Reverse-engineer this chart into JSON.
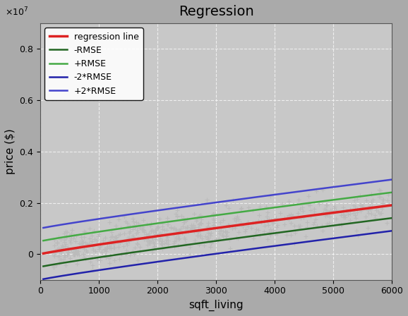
{
  "title": "Regression",
  "xlabel": "sqft_living",
  "ylabel": "price ($)",
  "xlim": [
    0,
    6000
  ],
  "ylim": [
    -1000000.0,
    9000000.0
  ],
  "yticks": [
    0,
    2000000.0,
    4000000.0,
    6000000.0,
    8000000.0
  ],
  "xticks": [
    0,
    1000,
    2000,
    3000,
    4000,
    5000,
    6000
  ],
  "bg_color": "#aaaaaa",
  "plot_bg_color": "#c8c8c8",
  "scatter_color": "#bbbbbb",
  "scatter_marker": "+",
  "scatter_size": 20,
  "reg_color": "#dd2222",
  "rmse_neg_color": "#226622",
  "rmse_pos_color": "#44aa44",
  "rmse2_neg_color": "#2222aa",
  "rmse2_pos_color": "#4444cc",
  "reg_linewidth": 2.5,
  "rmse_linewidth": 1.8,
  "rmse2_linewidth": 1.8,
  "legend_labels": [
    "regression line",
    "-RMSE",
    "+RMSE",
    "-2*RMSE",
    "+2*RMSE"
  ],
  "coef_a": 4.0,
  "coef_b": 0.5,
  "RMSE": 500000,
  "n_scatter": 600,
  "seed": 42
}
